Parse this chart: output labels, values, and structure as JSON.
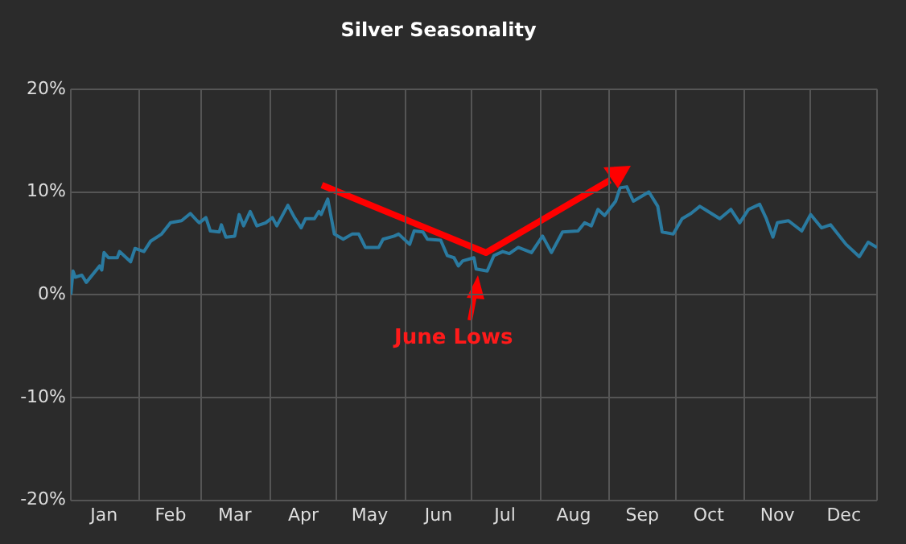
{
  "chart_data": {
    "type": "line",
    "title": "Silver Seasonality",
    "color": "#2a7aa0",
    "x": [
      "--01-01",
      "--01-02",
      "--01-03",
      "--01-06",
      "--01-08",
      "--01-14",
      "--01-15",
      "--01-16",
      "--01-18",
      "--01-22",
      "--01-23",
      "--01-28",
      "--01-30",
      "--02-03",
      "--02-06",
      "--02-11",
      "--02-15",
      "--02-20",
      "--02-24",
      "--02-27",
      "--02-28",
      "--03-03",
      "--03-05",
      "--03-09",
      "--03-10",
      "--03-12",
      "--03-16",
      "--03-18",
      "--03-20",
      "--03-23",
      "--03-26",
      "--03-30",
      "--04-02",
      "--04-04",
      "--04-09",
      "--04-12",
      "--04-15",
      "--04-17",
      "--04-21",
      "--04-23",
      "--04-24",
      "--04-27",
      "--04-30",
      "--05-04",
      "--05-08",
      "--05-11",
      "--05-14",
      "--05-20",
      "--05-22",
      "--05-27",
      "--05-29",
      "--06-03",
      "--06-05",
      "--06-09",
      "--06-11",
      "--06-17",
      "--06-20",
      "--06-23",
      "--06-25",
      "--06-27",
      "--07-02",
      "--07-03",
      "--07-08",
      "--07-11",
      "--07-15",
      "--07-18",
      "--07-22",
      "--07-28",
      "--08-02",
      "--08-06",
      "--08-11",
      "--08-18",
      "--08-21",
      "--08-24",
      "--08-27",
      "--08-30",
      "--09-04",
      "--09-06",
      "--09-09",
      "--09-12",
      "--09-19",
      "--09-23",
      "--09-25",
      "--09-30",
      "--10-04",
      "--10-08",
      "--10-12",
      "--10-15",
      "--10-21",
      "--10-26",
      "--10-30",
      "--11-03",
      "--11-08",
      "--11-11",
      "--11-14",
      "--11-16",
      "--11-21",
      "--11-27",
      "--12-01",
      "--12-06",
      "--12-10",
      "--12-17",
      "--12-23",
      "--12-27",
      "--12-31"
    ],
    "values": [
      0,
      2.3,
      1.7,
      1.9,
      1.2,
      2.8,
      2.4,
      4.1,
      3.6,
      3.6,
      4.2,
      3.2,
      4.5,
      4.2,
      5.2,
      5.9,
      7.0,
      7.2,
      7.9,
      7.2,
      7.0,
      7.5,
      6.2,
      6.1,
      6.8,
      5.6,
      5.7,
      7.8,
      6.7,
      8.1,
      6.7,
      7.0,
      7.5,
      6.7,
      8.7,
      7.5,
      6.5,
      7.4,
      7.4,
      8.1,
      7.8,
      9.3,
      5.9,
      5.4,
      5.9,
      5.9,
      4.6,
      4.6,
      5.4,
      5.7,
      5.9,
      4.9,
      6.2,
      6.1,
      5.4,
      5.3,
      3.8,
      3.6,
      2.8,
      3.3,
      3.6,
      2.5,
      2.3,
      3.8,
      4.2,
      4.0,
      4.6,
      4.1,
      5.7,
      4.1,
      6.1,
      6.2,
      7.0,
      6.7,
      8.3,
      7.7,
      9.1,
      10.4,
      10.5,
      9.1,
      10.0,
      8.6,
      6.1,
      5.9,
      7.4,
      7.9,
      8.6,
      8.2,
      7.4,
      8.3,
      7.0,
      8.3,
      8.8,
      7.4,
      5.6,
      7.0,
      7.2,
      6.2,
      7.8,
      6.5,
      6.8,
      4.9,
      3.7,
      5.1,
      4.6
    ],
    "xlim": [
      "--01-01",
      "--12-31"
    ],
    "xticks": [
      {
        "value": "--01-01",
        "label": null
      },
      {
        "value": "--01-16",
        "label": "Jan"
      },
      {
        "value": "--02-01",
        "label": null
      },
      {
        "value": "--02-15",
        "label": "Feb"
      },
      {
        "value": "--03-01",
        "label": null
      },
      {
        "value": "--03-16",
        "label": "Mar"
      },
      {
        "value": "--04-01",
        "label": null
      },
      {
        "value": "--04-16",
        "label": "Apr"
      },
      {
        "value": "--05-01",
        "label": null
      },
      {
        "value": "--05-16",
        "label": "May"
      },
      {
        "value": "--06-01",
        "label": null
      },
      {
        "value": "--06-16",
        "label": "Jun"
      },
      {
        "value": "--07-01",
        "label": null
      },
      {
        "value": "--07-16",
        "label": "Jul"
      },
      {
        "value": "--08-01",
        "label": null
      },
      {
        "value": "--08-16",
        "label": "Aug"
      },
      {
        "value": "--09-01",
        "label": null
      },
      {
        "value": "--09-16",
        "label": "Sep"
      },
      {
        "value": "--10-01",
        "label": null
      },
      {
        "value": "--10-16",
        "label": "Oct"
      },
      {
        "value": "--11-01",
        "label": null
      },
      {
        "value": "--11-16",
        "label": "Nov"
      },
      {
        "value": "--12-01",
        "label": null
      },
      {
        "value": "--12-16",
        "label": "Dec"
      },
      {
        "value": "--12-31",
        "label": null
      }
    ],
    "ylim": [
      -20,
      20
    ],
    "yticks": [
      {
        "value": -20,
        "label": "-20%"
      },
      {
        "value": -10,
        "label": "-10%"
      },
      {
        "value": 0,
        "label": "0%"
      },
      {
        "value": 10,
        "label": "10%"
      },
      {
        "value": 20,
        "label": "20%"
      }
    ],
    "grid": true,
    "marker": "none",
    "annotations": [
      {
        "text": "June Lows",
        "x": "--07-03",
        "y": 2.5
      }
    ]
  }
}
